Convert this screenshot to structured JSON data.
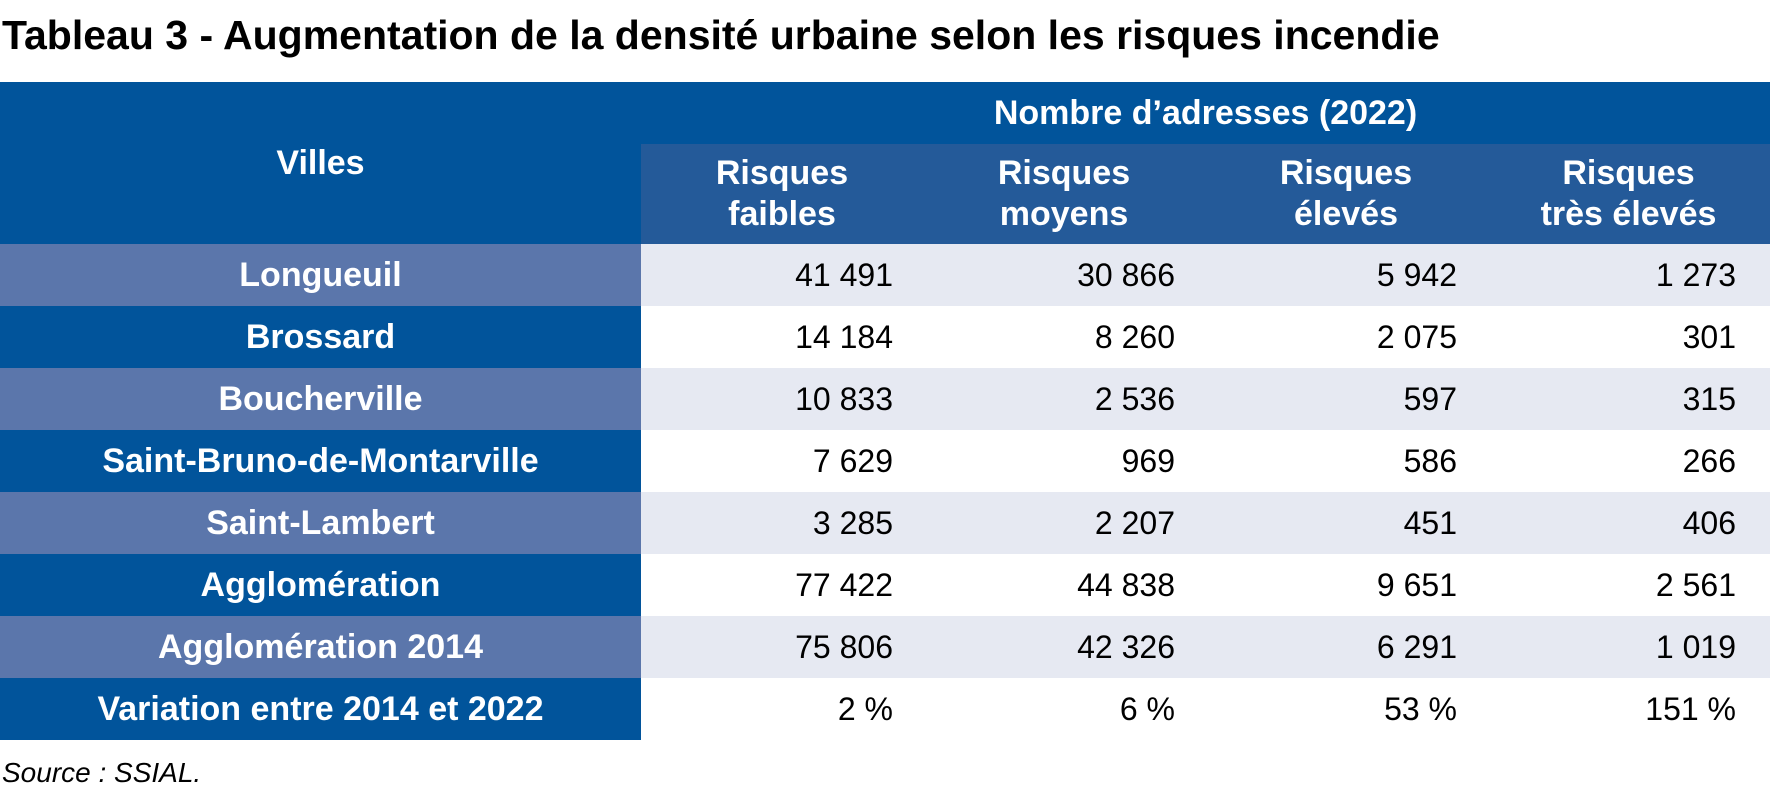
{
  "title": "Tableau 3 - Augmentation de la densité urbaine selon les risques incendie",
  "table": {
    "city_header": "Villes",
    "group_header": "Nombre d’adresses (2022)",
    "risk_headers": [
      {
        "line1": "Risques",
        "line2": "faibles"
      },
      {
        "line1": "Risques",
        "line2": "moyens"
      },
      {
        "line1": "Risques",
        "line2": "élevés"
      },
      {
        "line1": "Risques",
        "line2": "très élevés"
      }
    ],
    "rows": [
      {
        "city": "Longueuil",
        "values": [
          "41 491",
          "30 866",
          "5 942",
          "1 273"
        ]
      },
      {
        "city": "Brossard",
        "values": [
          "14 184",
          "8 260",
          "2 075",
          "301"
        ]
      },
      {
        "city": "Boucherville",
        "values": [
          "10 833",
          "2 536",
          "597",
          "315"
        ]
      },
      {
        "city": "Saint-Bruno-de-Montarville",
        "values": [
          "7 629",
          "969",
          "586",
          "266"
        ]
      },
      {
        "city": "Saint-Lambert",
        "values": [
          "3 285",
          "2 207",
          "451",
          "406"
        ]
      },
      {
        "city": "Agglomération",
        "values": [
          "77 422",
          "44 838",
          "9 651",
          "2 561"
        ]
      },
      {
        "city": "Agglomération 2014",
        "values": [
          "75 806",
          "42 326",
          "6 291",
          "1 019"
        ]
      },
      {
        "city": "Variation entre 2014 et 2022",
        "values": [
          "2 %",
          "6 %",
          "53 %",
          "151 %"
        ]
      }
    ]
  },
  "source": "Source : SSIAL.",
  "colors": {
    "header_blue": "#01549b",
    "subheader_blue": "#245a99",
    "row_city_light": "#5b76ab",
    "row_light": "#e6e9f2"
  }
}
